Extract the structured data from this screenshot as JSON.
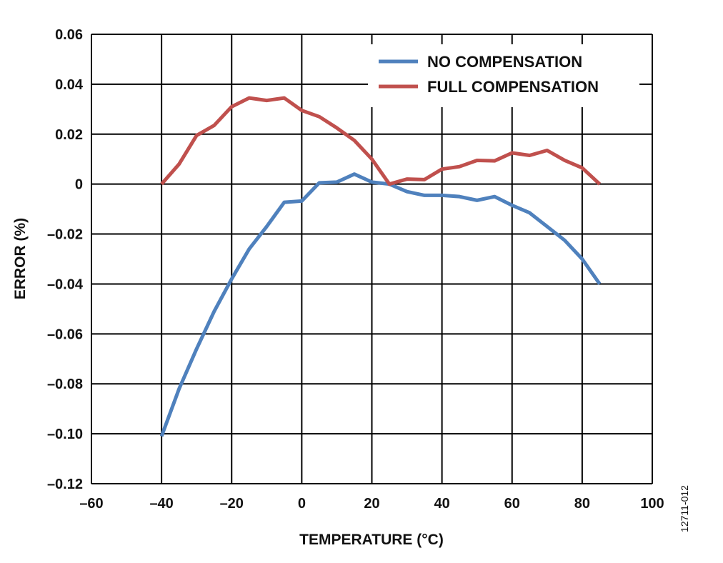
{
  "chart_data": {
    "type": "line",
    "title": "",
    "xlabel": "TEMPERATURE (°C)",
    "ylabel": "ERROR (%)",
    "xlim": [
      -60,
      100
    ],
    "ylim": [
      -0.12,
      0.06
    ],
    "xticks": [
      -60,
      -40,
      -20,
      0,
      20,
      40,
      60,
      80,
      100
    ],
    "xtick_labels": [
      "–60",
      "–40",
      "–20",
      "0",
      "20",
      "40",
      "60",
      "80",
      "100"
    ],
    "yticks": [
      0.06,
      0.04,
      0.02,
      0,
      -0.02,
      -0.04,
      -0.06,
      -0.08,
      -0.1,
      -0.12
    ],
    "ytick_labels": [
      "0.06",
      "0.04",
      "0.02",
      "0",
      "–0.02",
      "–0.04",
      "–0.06",
      "–0.08",
      "–0.10",
      "–0.12"
    ],
    "grid": true,
    "legend_position": "top-right",
    "x": [
      -40,
      -35,
      -30,
      -25,
      -20,
      -15,
      -10,
      -5,
      0,
      5,
      10,
      15,
      20,
      25,
      30,
      35,
      40,
      45,
      50,
      55,
      60,
      65,
      70,
      75,
      80,
      85
    ],
    "series": [
      {
        "name": "NO COMPENSATION",
        "color": "#4f81bd",
        "values": [
          -0.101,
          -0.082,
          -0.066,
          -0.051,
          -0.038,
          -0.026,
          -0.017,
          -0.0073,
          -0.0068,
          0.0005,
          0.0008,
          0.004,
          0.0008,
          0,
          -0.003,
          -0.0045,
          -0.0045,
          -0.005,
          -0.0065,
          -0.005,
          -0.0085,
          -0.0115,
          -0.017,
          -0.0225,
          -0.03,
          -0.04
        ]
      },
      {
        "name": "FULL COMPENSATION",
        "color": "#c0504d",
        "values": [
          0,
          0.008,
          0.0195,
          0.0235,
          0.031,
          0.0345,
          0.0335,
          0.0345,
          0.0295,
          0.027,
          0.0225,
          0.0175,
          0.01,
          0,
          0.002,
          0.0018,
          0.006,
          0.007,
          0.0095,
          0.0093,
          0.0125,
          0.0115,
          0.0135,
          0.0095,
          0.0065,
          0
        ]
      }
    ],
    "figure_id": "12711-012"
  }
}
